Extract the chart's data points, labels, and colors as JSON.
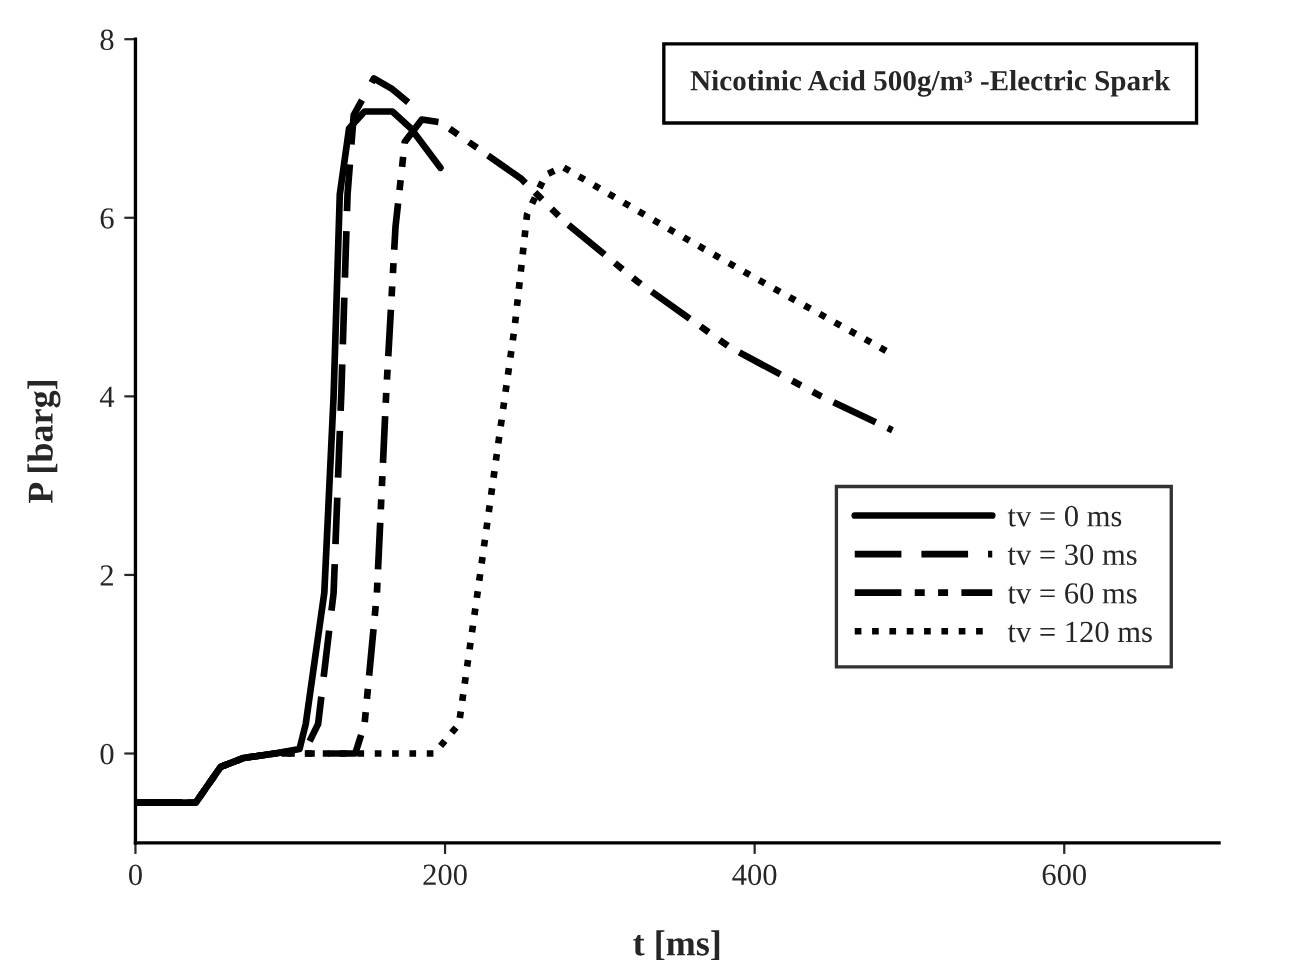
{
  "chart_data": {
    "type": "line",
    "xlabel": "t [ms]",
    "ylabel": "P [barg]",
    "annotations": [
      "Nicotinic Acid 500g/m³ -Electric Spark"
    ],
    "xlim": [
      0,
      700
    ],
    "xticks": [
      0,
      200,
      400,
      600
    ],
    "ylim": [
      -1,
      8
    ],
    "yticks": [
      0,
      2,
      4,
      6,
      8
    ],
    "grid": false,
    "legend": "bottom right",
    "marker": "none",
    "series": [
      {
        "name": "tv = 0 ms",
        "color": "#000000",
        "line_style": "solid",
        "x": [
          0,
          39,
          55,
          70,
          90,
          106,
          110,
          122,
          128,
          132,
          138,
          148,
          166,
          178,
          197
        ],
        "values": [
          -0.55,
          -0.55,
          -0.15,
          -0.05,
          0.0,
          0.05,
          0.33,
          1.8,
          4.0,
          6.26,
          7.0,
          7.19,
          7.19,
          7.0,
          6.56
        ]
      },
      {
        "name": "tv = 30 ms",
        "color": "#000000",
        "line_style": "dashed",
        "x": [
          0,
          39,
          55,
          70,
          90,
          110,
          118,
          128,
          133,
          137,
          141,
          154,
          166,
          186
        ],
        "values": [
          -0.55,
          -0.55,
          -0.15,
          -0.05,
          0.0,
          0.05,
          0.33,
          1.8,
          4.04,
          6.26,
          7.15,
          7.56,
          7.44,
          7.15
        ]
      },
      {
        "name": "tv = 60 ms",
        "color": "#000000",
        "line_style": "dashdotdot",
        "x": [
          0,
          39,
          55,
          70,
          90,
          142,
          148,
          156,
          162,
          168,
          174,
          185,
          197,
          249,
          277,
          324,
          384,
          443,
          489
        ],
        "values": [
          -0.55,
          -0.55,
          -0.15,
          -0.05,
          0.0,
          0.0,
          0.33,
          1.8,
          4.04,
          5.9,
          6.85,
          7.1,
          7.07,
          6.44,
          5.96,
          5.29,
          4.55,
          4.0,
          3.62
        ]
      },
      {
        "name": "tv = 120 ms",
        "color": "#000000",
        "line_style": "dotted",
        "x": [
          0,
          39,
          55,
          70,
          90,
          193,
          209,
          221,
          233,
          245,
          253,
          265,
          276,
          344,
          404,
          489
        ],
        "values": [
          -0.55,
          -0.55,
          -0.15,
          -0.05,
          0.0,
          0.0,
          0.33,
          1.8,
          3.3,
          4.78,
          6.04,
          6.48,
          6.57,
          5.88,
          5.29,
          4.47
        ]
      }
    ]
  }
}
